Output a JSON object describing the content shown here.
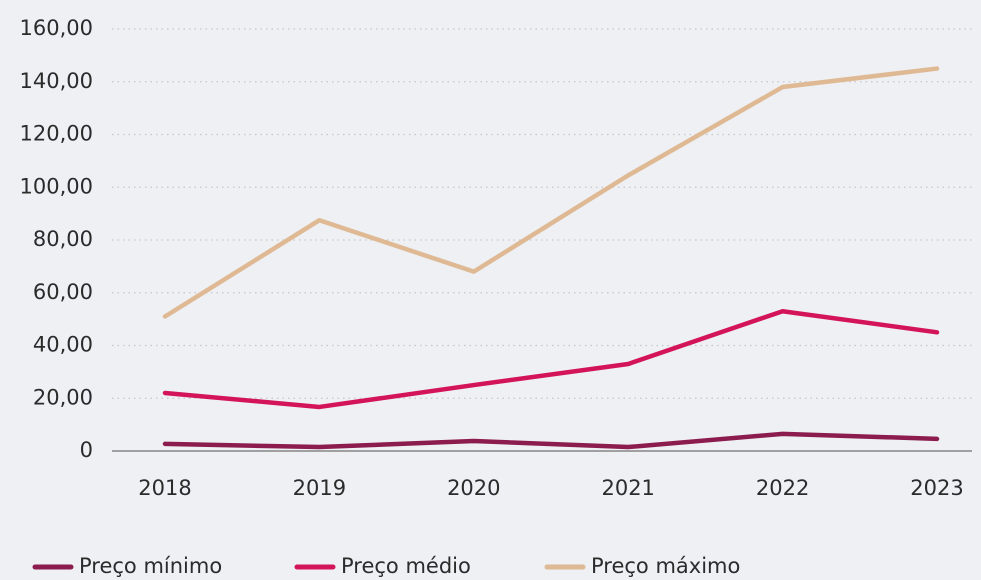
{
  "chart_data": {
    "type": "line",
    "categories": [
      "2018",
      "2019",
      "2020",
      "2021",
      "2022",
      "2023"
    ],
    "series": [
      {
        "name": "Preço mínimo",
        "color": "#8c1c4e",
        "values": [
          2.7,
          1.5,
          3.8,
          1.5,
          6.5,
          4.6
        ]
      },
      {
        "name": "Preço médio",
        "color": "#d4145a",
        "values": [
          22,
          16.7,
          25,
          33,
          53,
          45
        ]
      },
      {
        "name": "Preço máximo",
        "color": "#dfb993",
        "values": [
          51,
          87.5,
          68,
          104.5,
          138,
          145
        ]
      }
    ],
    "ylim": [
      0,
      160
    ],
    "yticks": [
      0,
      {
        "value": 20,
        "label": "20,00"
      },
      {
        "value": 40,
        "label": "40,00"
      },
      {
        "value": 60,
        "label": "60,00"
      },
      {
        "value": 80,
        "label": "80,00"
      },
      {
        "value": 100,
        "label": "100,00"
      },
      {
        "value": 120,
        "label": "120,00"
      },
      {
        "value": 140,
        "label": "140,00"
      },
      {
        "value": 160,
        "label": "160,00"
      }
    ],
    "grid": true,
    "legend": "bottom"
  }
}
